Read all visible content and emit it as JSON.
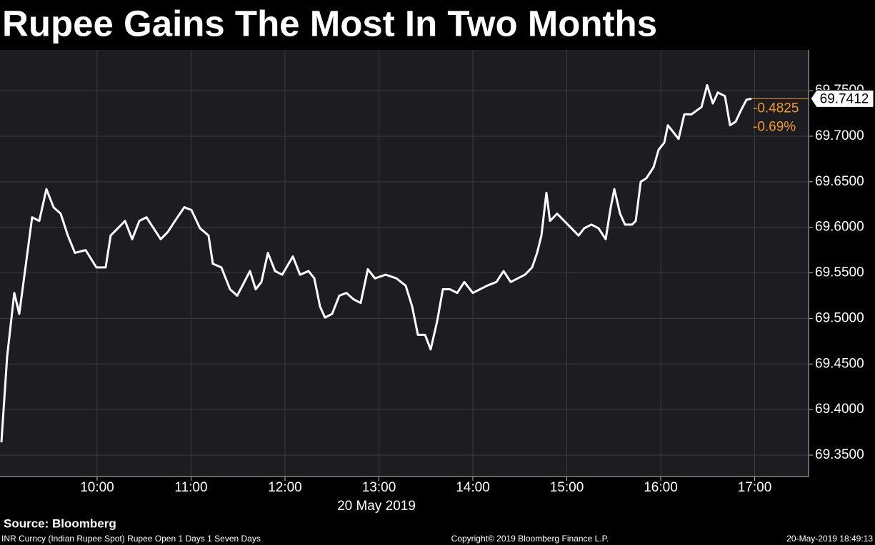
{
  "chart_data": {
    "type": "line",
    "title": "Rupee Gains The Most In Two Months",
    "xlabel": "20 May 2019",
    "color": "#ffffff",
    "grid": true,
    "x": [
      8.981,
      9.042,
      9.118,
      9.171,
      9.232,
      9.308,
      9.384,
      9.46,
      9.536,
      9.612,
      9.688,
      9.764,
      9.878,
      9.992,
      10.091,
      10.144,
      10.221,
      10.297,
      10.373,
      10.449,
      10.525,
      10.601,
      10.677,
      10.753,
      10.829,
      10.928,
      11.004,
      11.095,
      11.186,
      11.232,
      11.323,
      11.415,
      11.491,
      11.567,
      11.627,
      11.688,
      11.749,
      11.818,
      11.894,
      11.97,
      12.084,
      12.16,
      12.251,
      12.312,
      12.373,
      12.426,
      12.502,
      12.578,
      12.654,
      12.73,
      12.806,
      12.882,
      12.958,
      13.072,
      13.186,
      13.285,
      13.354,
      13.415,
      13.491,
      13.551,
      13.62,
      13.681,
      13.757,
      13.833,
      13.909,
      14.0,
      14.076,
      14.152,
      14.251,
      14.327,
      14.403,
      14.479,
      14.555,
      14.631,
      14.684,
      14.73,
      14.783,
      14.821,
      14.897,
      14.973,
      15.049,
      15.125,
      15.186,
      15.262,
      15.338,
      15.414,
      15.468,
      15.506,
      15.567,
      15.62,
      15.696,
      15.734,
      15.787,
      15.848,
      15.924,
      15.977,
      16.038,
      16.076,
      16.13,
      16.19,
      16.251,
      16.327,
      16.38,
      16.434,
      16.494,
      16.555,
      16.608,
      16.684,
      16.738,
      16.798,
      16.852,
      16.913,
      16.966
    ],
    "values": [
      69.364,
      69.458,
      69.528,
      69.505,
      69.552,
      69.611,
      69.607,
      69.642,
      69.622,
      69.615,
      69.591,
      69.572,
      69.575,
      69.556,
      69.556,
      69.591,
      69.599,
      69.607,
      69.587,
      69.607,
      69.611,
      69.599,
      69.587,
      69.595,
      69.607,
      69.622,
      69.619,
      69.599,
      69.591,
      69.56,
      69.556,
      69.532,
      69.525,
      69.54,
      69.552,
      69.532,
      69.54,
      69.572,
      69.552,
      69.548,
      69.568,
      69.548,
      69.552,
      69.544,
      69.513,
      69.501,
      69.505,
      69.525,
      69.528,
      69.521,
      69.517,
      69.554,
      69.544,
      69.548,
      69.544,
      69.536,
      69.513,
      69.482,
      69.482,
      69.466,
      69.497,
      69.532,
      69.532,
      69.528,
      69.54,
      69.528,
      69.532,
      69.536,
      69.54,
      69.552,
      69.54,
      69.544,
      69.548,
      69.556,
      69.572,
      69.591,
      69.638,
      69.607,
      69.615,
      69.607,
      69.599,
      69.591,
      69.599,
      69.603,
      69.599,
      69.587,
      69.622,
      69.642,
      69.615,
      69.603,
      69.603,
      69.607,
      69.65,
      69.654,
      69.666,
      69.685,
      69.693,
      69.712,
      69.705,
      69.697,
      69.724,
      69.724,
      69.728,
      69.732,
      69.756,
      69.736,
      69.748,
      69.744,
      69.712,
      69.716,
      69.728,
      69.74,
      69.7412
    ],
    "xlim": [
      8.966,
      17.574
    ],
    "xticks": [
      {
        "value": 10,
        "label": "10:00"
      },
      {
        "value": 11,
        "label": "11:00"
      },
      {
        "value": 12,
        "label": "12:00"
      },
      {
        "value": 13,
        "label": "13:00"
      },
      {
        "value": 14,
        "label": "14:00"
      },
      {
        "value": 15,
        "label": "15:00"
      },
      {
        "value": 16,
        "label": "16:00"
      },
      {
        "value": 17,
        "label": "17:00"
      }
    ],
    "ylim": [
      69.3265,
      69.7947
    ],
    "yticks": [
      {
        "value": 69.35,
        "label": "69.3500"
      },
      {
        "value": 69.4,
        "label": "69.4000"
      },
      {
        "value": 69.45,
        "label": "69.4500"
      },
      {
        "value": 69.5,
        "label": "69.5000"
      },
      {
        "value": 69.55,
        "label": "69.5500"
      },
      {
        "value": 69.6,
        "label": "69.6000"
      },
      {
        "value": 69.65,
        "label": "69.6500"
      },
      {
        "value": 69.7,
        "label": "69.7000"
      },
      {
        "value": 69.75,
        "label": "69.7500"
      }
    ],
    "annotations": [
      "-0.4825",
      "-0.69%"
    ],
    "annotation_color": "#f39a2f"
  },
  "footer": {
    "source": "Source: Bloomberg",
    "description": "INR Curncy (Indian Rupee Spot) Rupee Open 1 Days 1 Seven Days",
    "copyright": "Copyright© 2019 Bloomberg Finance L.P.",
    "timestamp": "20-May-2019 18:49:13"
  }
}
